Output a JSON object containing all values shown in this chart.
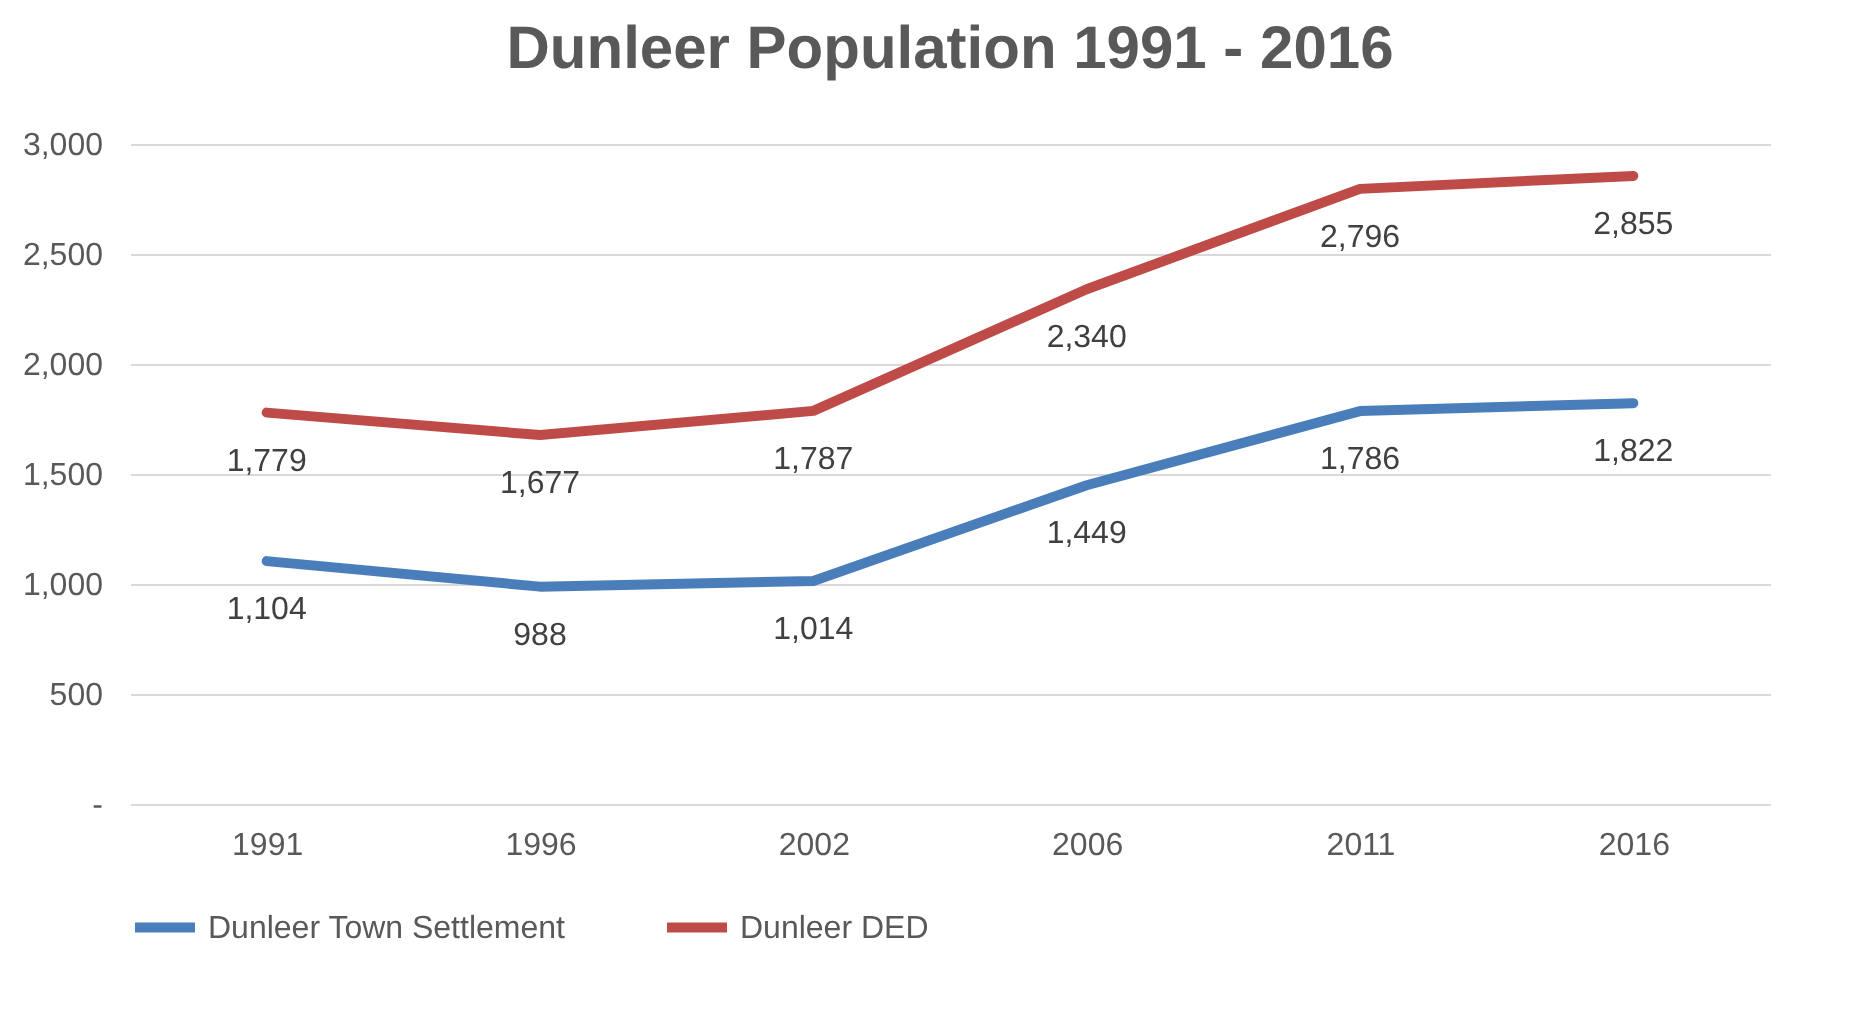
{
  "chart_data": {
    "type": "line",
    "title": "Dunleer Population 1991 - 2016",
    "categories": [
      "1991",
      "1996",
      "2002",
      "2006",
      "2011",
      "2016"
    ],
    "series": [
      {
        "name": "Dunleer Town Settlement",
        "color": "#4a7ebb",
        "values": [
          1104,
          988,
          1014,
          1449,
          1786,
          1822
        ],
        "value_labels": [
          "1,104",
          "988",
          "1,014",
          "1,449",
          "1,786",
          "1,822"
        ]
      },
      {
        "name": "Dunleer DED",
        "color": "#be4b48",
        "values": [
          1779,
          1677,
          1787,
          2340,
          2796,
          2855
        ],
        "value_labels": [
          "1,779",
          "1,677",
          "1,787",
          "2,340",
          "2,796",
          "2,855"
        ]
      }
    ],
    "ylim": [
      0,
      3000
    ],
    "yticks": [
      {
        "value": 0,
        "label": "-"
      },
      500,
      {
        "value": 1000,
        "label": "1,000"
      },
      {
        "value": 1500,
        "label": "1,500"
      },
      {
        "value": 2000,
        "label": "2,000"
      },
      {
        "value": 2500,
        "label": "2,500"
      },
      {
        "value": 3000,
        "label": "3,000"
      }
    ],
    "grid": "y",
    "legend": "bottom",
    "marker": "none",
    "line_style": "solid"
  }
}
